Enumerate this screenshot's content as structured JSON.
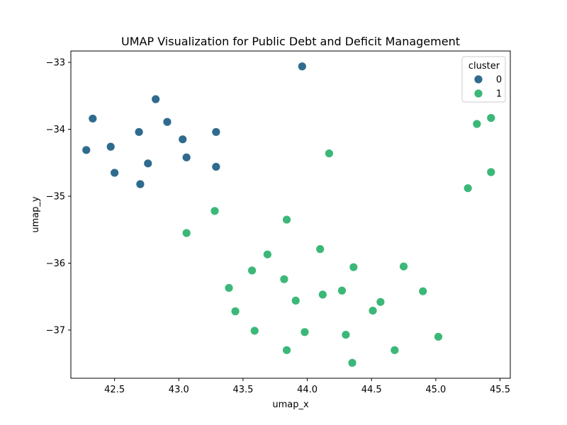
{
  "chart_data": {
    "type": "scatter",
    "title": "UMAP Visualization for Public Debt and Deficit Management",
    "xlabel": "umap_x",
    "ylabel": "umap_y",
    "xlim": [
      42.16,
      45.58
    ],
    "ylim": [
      -37.72,
      -32.83
    ],
    "xticks": [
      42.5,
      43.0,
      43.5,
      44.0,
      44.5,
      45.0,
      45.5
    ],
    "xtick_labels": [
      "42.5",
      "43.0",
      "43.5",
      "44.0",
      "44.5",
      "45.0",
      "45.5"
    ],
    "yticks": [
      -33,
      -34,
      -35,
      -36,
      -37
    ],
    "ytick_labels": [
      "−33",
      "−34",
      "−35",
      "−36",
      "−37"
    ],
    "grid": false,
    "legend": {
      "title": "cluster",
      "placement": "top-right"
    },
    "series": [
      {
        "name": "0",
        "color": "#2f6b8e",
        "points": [
          {
            "x": 43.96,
            "y": -33.06
          },
          {
            "x": 42.82,
            "y": -33.55
          },
          {
            "x": 42.33,
            "y": -33.84
          },
          {
            "x": 42.91,
            "y": -33.89
          },
          {
            "x": 42.69,
            "y": -34.04
          },
          {
            "x": 43.29,
            "y": -34.04
          },
          {
            "x": 43.03,
            "y": -34.15
          },
          {
            "x": 42.47,
            "y": -34.26
          },
          {
            "x": 42.28,
            "y": -34.31
          },
          {
            "x": 43.06,
            "y": -34.42
          },
          {
            "x": 42.76,
            "y": -34.51
          },
          {
            "x": 43.29,
            "y": -34.56
          },
          {
            "x": 42.5,
            "y": -34.65
          },
          {
            "x": 42.7,
            "y": -34.82
          }
        ]
      },
      {
        "name": "1",
        "color": "#3bb878",
        "points": [
          {
            "x": 45.43,
            "y": -33.83
          },
          {
            "x": 45.32,
            "y": -33.92
          },
          {
            "x": 44.17,
            "y": -34.36
          },
          {
            "x": 45.43,
            "y": -34.64
          },
          {
            "x": 45.25,
            "y": -34.88
          },
          {
            "x": 43.28,
            "y": -35.22
          },
          {
            "x": 43.84,
            "y": -35.35
          },
          {
            "x": 43.06,
            "y": -35.55
          },
          {
            "x": 44.1,
            "y": -35.79
          },
          {
            "x": 43.69,
            "y": -35.87
          },
          {
            "x": 44.36,
            "y": -36.06
          },
          {
            "x": 44.75,
            "y": -36.05
          },
          {
            "x": 43.57,
            "y": -36.11
          },
          {
            "x": 43.82,
            "y": -36.24
          },
          {
            "x": 43.39,
            "y": -36.37
          },
          {
            "x": 44.27,
            "y": -36.41
          },
          {
            "x": 44.9,
            "y": -36.42
          },
          {
            "x": 44.12,
            "y": -36.47
          },
          {
            "x": 43.91,
            "y": -36.56
          },
          {
            "x": 44.57,
            "y": -36.58
          },
          {
            "x": 43.44,
            "y": -36.72
          },
          {
            "x": 44.51,
            "y": -36.71
          },
          {
            "x": 43.59,
            "y": -37.01
          },
          {
            "x": 43.98,
            "y": -37.03
          },
          {
            "x": 44.3,
            "y": -37.07
          },
          {
            "x": 45.02,
            "y": -37.1
          },
          {
            "x": 43.84,
            "y": -37.3
          },
          {
            "x": 44.68,
            "y": -37.3
          },
          {
            "x": 44.35,
            "y": -37.49
          }
        ]
      }
    ]
  }
}
